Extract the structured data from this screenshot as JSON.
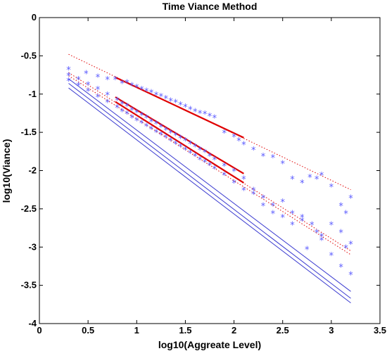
{
  "chart_data": {
    "type": "scatter",
    "title": "Time Viance Method",
    "xlabel": "log10(Aggreate Level)",
    "ylabel": "log10(Viance)",
    "xlim": [
      0,
      3.5
    ],
    "ylim": [
      -4,
      0
    ],
    "xticks": [
      0,
      0.5,
      1,
      1.5,
      2,
      2.5,
      3,
      3.5
    ],
    "xtick_labels": [
      "0",
      "0.5",
      "1",
      "1.5",
      "2",
      "2.5",
      "3",
      "3.5"
    ],
    "yticks": [
      0,
      -0.5,
      -1,
      -1.5,
      -2,
      -2.5,
      -3,
      -3.5,
      -4
    ],
    "ytick_labels": [
      "0",
      "-0.5",
      "-1",
      "-1.5",
      "-2",
      "-2.5",
      "-3",
      "-3.5",
      "-4"
    ],
    "grid": false,
    "colors": {
      "markers": "#5a5aff",
      "reference": "#3a3ad0",
      "fit": "#e00000",
      "bound": "#e00000"
    },
    "series": [
      {
        "style": "markers",
        "x": [
          0.3,
          0.48,
          0.6,
          0.7,
          0.78,
          0.85,
          0.9,
          0.95,
          1.0,
          1.05,
          1.1,
          1.15,
          1.2,
          1.25,
          1.3,
          1.35,
          1.4,
          1.45,
          1.5,
          1.55,
          1.6,
          1.65,
          1.7,
          1.75,
          1.8,
          1.9,
          2.0,
          2.05,
          2.1,
          2.2,
          2.3,
          2.4,
          2.5,
          2.6,
          2.7,
          2.78,
          2.85,
          2.9,
          3.0,
          3.1,
          3.15,
          3.2
        ],
        "y": [
          -0.67,
          -0.72,
          -0.77,
          -0.8,
          -0.8,
          -0.85,
          -0.84,
          -0.88,
          -0.9,
          -0.93,
          -0.95,
          -0.97,
          -1.0,
          -1.02,
          -1.05,
          -1.08,
          -1.1,
          -1.13,
          -1.16,
          -1.19,
          -1.22,
          -1.24,
          -1.25,
          -1.28,
          -1.3,
          -1.5,
          -1.55,
          -1.6,
          -1.65,
          -1.72,
          -1.8,
          -1.82,
          -1.9,
          -2.1,
          -2.15,
          -2.08,
          -2.1,
          -2.05,
          -2.2,
          -2.45,
          -2.55,
          -2.35
        ]
      },
      {
        "style": "markers",
        "x": [
          0.3,
          0.4,
          0.5,
          0.6,
          0.7,
          0.8,
          0.85,
          0.9,
          0.95,
          1.0,
          1.05,
          1.1,
          1.15,
          1.2,
          1.25,
          1.3,
          1.35,
          1.4,
          1.45,
          1.5,
          1.55,
          1.6,
          1.65,
          1.7,
          1.75,
          1.8,
          1.9,
          2.0,
          2.1,
          2.2,
          2.3,
          2.4,
          2.5,
          2.6,
          2.7,
          2.8,
          2.9,
          3.0,
          3.1,
          3.2
        ],
        "y": [
          -0.75,
          -0.8,
          -0.87,
          -0.93,
          -1.0,
          -1.07,
          -1.12,
          -1.15,
          -1.2,
          -1.23,
          -1.27,
          -1.3,
          -1.35,
          -1.38,
          -1.42,
          -1.46,
          -1.5,
          -1.53,
          -1.57,
          -1.6,
          -1.64,
          -1.68,
          -1.72,
          -1.75,
          -1.8,
          -1.85,
          -1.93,
          -2.0,
          -2.1,
          -2.25,
          -2.35,
          -2.45,
          -2.4,
          -2.55,
          -2.6,
          -2.7,
          -2.85,
          -2.7,
          -2.8,
          -2.95
        ]
      },
      {
        "style": "markers",
        "x": [
          0.3,
          0.4,
          0.5,
          0.6,
          0.7,
          0.8,
          0.85,
          0.9,
          0.95,
          1.0,
          1.05,
          1.1,
          1.15,
          1.2,
          1.25,
          1.3,
          1.35,
          1.4,
          1.45,
          1.5,
          1.55,
          1.6,
          1.65,
          1.7,
          1.75,
          1.8,
          1.9,
          2.0,
          2.1,
          2.2,
          2.3,
          2.4,
          2.5,
          2.6,
          2.7,
          2.75,
          2.85,
          2.9,
          3.0,
          3.1,
          3.15,
          3.2
        ],
        "y": [
          -0.82,
          -0.88,
          -0.95,
          -1.03,
          -1.1,
          -1.17,
          -1.22,
          -1.25,
          -1.3,
          -1.34,
          -1.37,
          -1.41,
          -1.45,
          -1.49,
          -1.52,
          -1.56,
          -1.6,
          -1.64,
          -1.68,
          -1.72,
          -1.76,
          -1.8,
          -1.85,
          -1.88,
          -1.92,
          -1.97,
          -2.05,
          -2.15,
          -2.25,
          -2.3,
          -2.45,
          -2.55,
          -2.6,
          -2.7,
          -2.65,
          -3.02,
          -2.8,
          -2.9,
          -3.1,
          -3.25,
          -3.0,
          -3.35
        ]
      },
      {
        "style": "line",
        "x": [
          0.3,
          3.2
        ],
        "y": [
          -0.8,
          -3.58
        ]
      },
      {
        "style": "line",
        "x": [
          0.3,
          3.2
        ],
        "y": [
          -0.86,
          -3.67
        ]
      },
      {
        "style": "line",
        "x": [
          0.3,
          3.2
        ],
        "y": [
          -0.92,
          -3.73
        ]
      },
      {
        "style": "fit",
        "x": [
          0.78,
          2.1
        ],
        "y": [
          -0.78,
          -1.57
        ]
      },
      {
        "style": "fit",
        "x": [
          0.78,
          2.1
        ],
        "y": [
          -1.04,
          -2.04
        ]
      },
      {
        "style": "fit",
        "x": [
          0.78,
          2.1
        ],
        "y": [
          -1.1,
          -2.16
        ]
      },
      {
        "style": "bound",
        "x": [
          0.3,
          3.2
        ],
        "y": [
          -0.48,
          -2.25
        ]
      },
      {
        "style": "bound",
        "x": [
          0.3,
          3.2
        ],
        "y": [
          -0.72,
          -3.05
        ]
      },
      {
        "style": "bound",
        "x": [
          0.3,
          3.2
        ],
        "y": [
          -0.76,
          -3.1
        ]
      }
    ]
  }
}
